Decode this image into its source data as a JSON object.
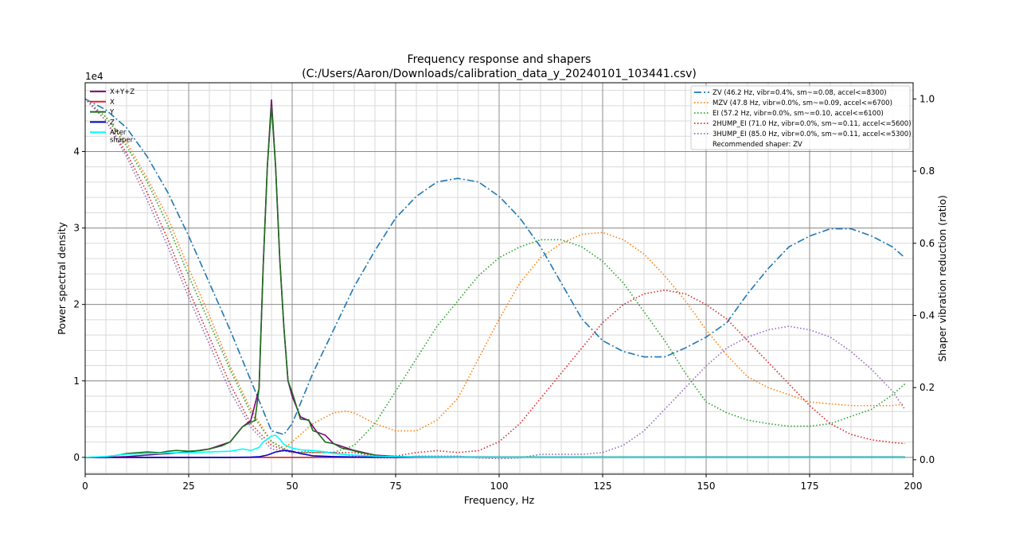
{
  "chart_data": {
    "type": "line",
    "title_line1": "Frequency response and shapers",
    "title_line2": "(C:/Users/Aaron/Downloads/calibration_data_y_20240101_103441.csv)",
    "xlabel": "Frequency, Hz",
    "ylabel_left": "Power spectral density",
    "ylabel_right": "Shaper vibration reduction (ratio)",
    "offset_text": "1e4",
    "xlim": [
      0,
      200
    ],
    "ylim_left": [
      -2200,
      49000
    ],
    "ylim_right": [
      -0.04,
      1.045
    ],
    "x_ticks": [
      0,
      25,
      50,
      75,
      100,
      125,
      150,
      175,
      200
    ],
    "x_tick_labels": [
      "0",
      "25",
      "50",
      "75",
      "100",
      "125",
      "150",
      "175",
      "200"
    ],
    "y_left_ticks": [
      0,
      10000,
      20000,
      30000,
      40000
    ],
    "y_left_tick_labels": [
      "0",
      "1",
      "2",
      "3",
      "4"
    ],
    "y_right_ticks": [
      0,
      0.2,
      0.4,
      0.6,
      0.8,
      1.0
    ],
    "y_right_tick_labels": [
      "0.0",
      "0.2",
      "0.4",
      "0.6",
      "0.8",
      "1.0"
    ],
    "grid": "major and minor",
    "psd_legend_placement": "upper-left",
    "shaper_legend_placement": "upper-right",
    "psd_series": [
      {
        "name": "X+Y+Z",
        "color": "#800080",
        "x": [
          0,
          5,
          10,
          15,
          20,
          25,
          30,
          35,
          38,
          40,
          42,
          43,
          44,
          45,
          46,
          47,
          48,
          49,
          50,
          52,
          54,
          56,
          58,
          60,
          65,
          70,
          75,
          80,
          90,
          100,
          150,
          198
        ],
        "y": [
          0,
          0,
          100,
          300,
          500,
          700,
          1100,
          2000,
          4000,
          4800,
          9000,
          25000,
          38000,
          46800,
          38000,
          26000,
          17000,
          10000,
          8000,
          5300,
          4800,
          3300,
          2900,
          1800,
          900,
          300,
          120,
          80,
          50,
          30,
          30,
          30
        ]
      },
      {
        "name": "X",
        "color": "#d62728",
        "x": [
          0,
          40,
          45,
          50,
          60,
          100,
          198
        ],
        "y": [
          0,
          0,
          0,
          0,
          0,
          0,
          0
        ]
      },
      {
        "name": "Y",
        "color": "#1a6e1a",
        "x": [
          0,
          5,
          8,
          10,
          15,
          18,
          20,
          22,
          25,
          28,
          30,
          33,
          35,
          38,
          40,
          41,
          42,
          43,
          44,
          45,
          46,
          47,
          48,
          49,
          50,
          52,
          54,
          55,
          56,
          58,
          60,
          62,
          64,
          66,
          68,
          70,
          72,
          75,
          80,
          90,
          100,
          150,
          198
        ],
        "y": [
          0,
          100,
          300,
          500,
          700,
          600,
          800,
          900,
          800,
          900,
          1100,
          1500,
          2000,
          4000,
          4600,
          4800,
          9000,
          25000,
          38000,
          46000,
          38000,
          26000,
          17000,
          10000,
          8500,
          5000,
          4900,
          3500,
          3300,
          2000,
          1800,
          1200,
          1000,
          700,
          500,
          300,
          120,
          80,
          50,
          40,
          30,
          30,
          30
        ]
      },
      {
        "name": "Z",
        "color": "#0000cc",
        "x": [
          0,
          35,
          40,
          42,
          44,
          46,
          48,
          50,
          52,
          55,
          60,
          65,
          70,
          80,
          90,
          100,
          198
        ],
        "y": [
          0,
          0,
          30,
          80,
          300,
          700,
          900,
          800,
          500,
          200,
          100,
          50,
          30,
          20,
          20,
          10,
          10
        ]
      },
      {
        "name": "After\nshaper",
        "color": "#00ffff",
        "x": [
          0,
          5,
          8,
          10,
          15,
          18,
          20,
          25,
          30,
          35,
          38,
          40,
          42,
          43,
          45,
          46,
          47,
          48,
          50,
          52,
          55,
          58,
          60,
          65,
          70,
          80,
          90,
          100,
          150,
          198
        ],
        "y": [
          0,
          100,
          300,
          400,
          500,
          500,
          600,
          600,
          700,
          800,
          1100,
          900,
          1300,
          2000,
          2800,
          2900,
          2400,
          1700,
          1200,
          1000,
          900,
          700,
          500,
          300,
          150,
          50,
          20,
          10,
          0,
          0
        ]
      }
    ],
    "shaper_series": [
      {
        "name": "ZV (46.2 Hz, vibr=0.4%, sm~=0.08, accel<=8300)",
        "color": "#1f77b4",
        "style": "dashdot",
        "x": [
          0,
          5,
          10,
          15,
          20,
          25,
          30,
          35,
          40,
          45,
          48,
          50,
          55,
          60,
          65,
          70,
          75,
          80,
          85,
          90,
          95,
          100,
          105,
          110,
          115,
          120,
          125,
          130,
          135,
          140,
          145,
          150,
          155,
          160,
          165,
          170,
          175,
          180,
          185,
          190,
          195,
          198
        ],
        "y": [
          1.0,
          0.97,
          0.92,
          0.84,
          0.74,
          0.62,
          0.49,
          0.36,
          0.22,
          0.08,
          0.07,
          0.1,
          0.24,
          0.36,
          0.48,
          0.58,
          0.67,
          0.73,
          0.77,
          0.78,
          0.77,
          0.73,
          0.67,
          0.59,
          0.49,
          0.39,
          0.33,
          0.3,
          0.285,
          0.285,
          0.31,
          0.34,
          0.38,
          0.46,
          0.53,
          0.59,
          0.62,
          0.64,
          0.64,
          0.62,
          0.59,
          0.56
        ]
      },
      {
        "name": "MZV (47.8 Hz, vibr=0.0%, sm~=0.09, accel<=6700)",
        "color": "#ff7f0e",
        "style": "dotted",
        "x": [
          0,
          5,
          10,
          15,
          20,
          25,
          30,
          35,
          40,
          45,
          48,
          50,
          55,
          60,
          63,
          65,
          70,
          75,
          80,
          85,
          90,
          95,
          100,
          105,
          110,
          115,
          120,
          125,
          130,
          135,
          140,
          145,
          150,
          155,
          160,
          165,
          170,
          175,
          180,
          185,
          190,
          195,
          198
        ],
        "y": [
          1.0,
          0.95,
          0.88,
          0.78,
          0.67,
          0.53,
          0.4,
          0.26,
          0.14,
          0.05,
          0.03,
          0.05,
          0.1,
          0.13,
          0.135,
          0.13,
          0.1,
          0.08,
          0.08,
          0.11,
          0.17,
          0.28,
          0.39,
          0.49,
          0.56,
          0.6,
          0.625,
          0.63,
          0.61,
          0.57,
          0.51,
          0.44,
          0.36,
          0.29,
          0.23,
          0.2,
          0.18,
          0.16,
          0.155,
          0.15,
          0.15,
          0.15,
          0.155
        ]
      },
      {
        "name": "EI (57.2 Hz, vibr=0.0%, sm~=0.10, accel<=6100)",
        "color": "#2ca02c",
        "style": "dotted",
        "x": [
          0,
          5,
          10,
          15,
          20,
          25,
          30,
          35,
          40,
          45,
          50,
          55,
          60,
          65,
          70,
          75,
          80,
          85,
          90,
          95,
          100,
          105,
          110,
          115,
          120,
          125,
          130,
          135,
          140,
          145,
          150,
          155,
          160,
          165,
          170,
          175,
          180,
          185,
          190,
          195,
          198
        ],
        "y": [
          1.0,
          0.95,
          0.87,
          0.77,
          0.65,
          0.51,
          0.38,
          0.25,
          0.13,
          0.05,
          0.02,
          0.02,
          0.02,
          0.04,
          0.1,
          0.19,
          0.28,
          0.37,
          0.44,
          0.51,
          0.56,
          0.59,
          0.61,
          0.61,
          0.59,
          0.55,
          0.49,
          0.41,
          0.33,
          0.24,
          0.16,
          0.13,
          0.11,
          0.1,
          0.093,
          0.093,
          0.1,
          0.12,
          0.14,
          0.18,
          0.21
        ]
      },
      {
        "name": "2HUMP_EI (71.0 Hz, vibr=0.0%, sm~=0.11, accel<=5600)",
        "color": "#d62728",
        "style": "dotted",
        "x": [
          0,
          5,
          10,
          15,
          20,
          25,
          30,
          35,
          40,
          45,
          50,
          55,
          60,
          65,
          70,
          75,
          80,
          85,
          90,
          95,
          100,
          105,
          110,
          115,
          120,
          125,
          130,
          135,
          140,
          145,
          150,
          155,
          160,
          165,
          170,
          175,
          180,
          185,
          190,
          195,
          198
        ],
        "y": [
          1.0,
          0.94,
          0.85,
          0.74,
          0.61,
          0.47,
          0.34,
          0.21,
          0.1,
          0.04,
          0.02,
          0.02,
          0.02,
          0.02,
          0.01,
          0.01,
          0.02,
          0.025,
          0.02,
          0.025,
          0.05,
          0.1,
          0.17,
          0.24,
          0.31,
          0.38,
          0.43,
          0.46,
          0.47,
          0.46,
          0.43,
          0.39,
          0.33,
          0.27,
          0.21,
          0.15,
          0.1,
          0.07,
          0.055,
          0.048,
          0.045
        ]
      },
      {
        "name": "3HUMP_EI (85.0 Hz, vibr=0.0%, sm~=0.11, accel<=5300)",
        "color": "#9467bd",
        "style": "dotted",
        "x": [
          0,
          5,
          10,
          15,
          20,
          25,
          30,
          35,
          40,
          45,
          50,
          55,
          60,
          65,
          70,
          75,
          80,
          85,
          90,
          95,
          100,
          105,
          110,
          115,
          120,
          125,
          130,
          135,
          140,
          145,
          150,
          155,
          160,
          165,
          170,
          175,
          180,
          185,
          190,
          195,
          198
        ],
        "y": [
          1.0,
          0.94,
          0.84,
          0.72,
          0.59,
          0.45,
          0.32,
          0.19,
          0.09,
          0.03,
          0.02,
          0.025,
          0.02,
          0.01,
          0.005,
          0.005,
          0.01,
          0.01,
          0.01,
          0.005,
          0.003,
          0.005,
          0.015,
          0.015,
          0.015,
          0.02,
          0.04,
          0.08,
          0.14,
          0.2,
          0.26,
          0.31,
          0.34,
          0.36,
          0.37,
          0.36,
          0.34,
          0.3,
          0.25,
          0.19,
          0.14
        ]
      }
    ],
    "recommendation": "Recommended shaper: ZV"
  }
}
